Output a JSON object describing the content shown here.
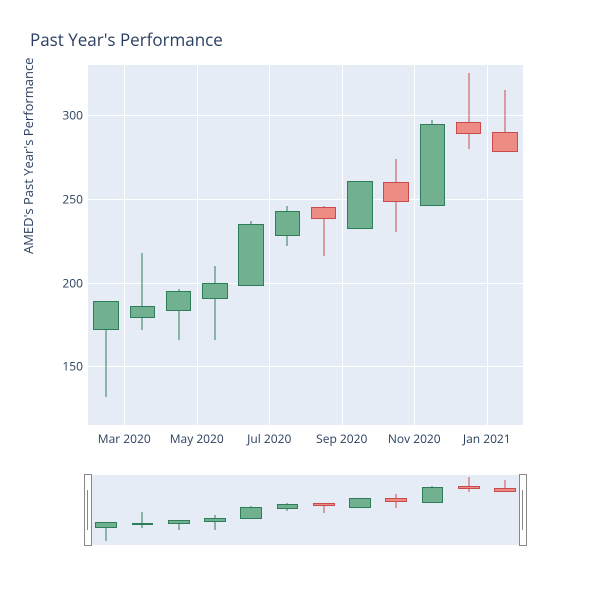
{
  "title": "Past Year's Performance",
  "ylabel": "AMED's Past Year's Performance",
  "background_color": "#ffffff",
  "plot_bg": "#e5ecf6",
  "grid_color": "#ffffff",
  "colors": {
    "up_fill": "#72b18f",
    "up_line": "#2e7d5a",
    "down_fill": "#ed8b85",
    "down_line": "#c94b4b"
  },
  "main": {
    "ylim": [
      115,
      330
    ],
    "yticks": [
      150,
      200,
      250,
      300
    ],
    "xticks": [
      {
        "label": "Mar 2020",
        "pos": 0.5
      },
      {
        "label": "May 2020",
        "pos": 2.5
      },
      {
        "label": "Jul 2020",
        "pos": 4.5
      },
      {
        "label": "Sep 2020",
        "pos": 6.5
      },
      {
        "label": "Nov 2020",
        "pos": 8.5
      },
      {
        "label": "Jan 2021",
        "pos": 10.5
      }
    ],
    "vgrid": [
      0.5,
      2.5,
      4.5,
      6.5,
      8.5,
      10.5
    ],
    "n": 12
  },
  "candles": [
    {
      "open": 172,
      "close": 189,
      "high": 189,
      "low": 132,
      "dir": "up"
    },
    {
      "open": 179,
      "close": 186,
      "high": 218,
      "low": 172,
      "dir": "up"
    },
    {
      "open": 183,
      "close": 195,
      "high": 196,
      "low": 166,
      "dir": "up"
    },
    {
      "open": 190,
      "close": 200,
      "high": 210,
      "low": 166,
      "dir": "up"
    },
    {
      "open": 198,
      "close": 235,
      "high": 237,
      "low": 198,
      "dir": "up"
    },
    {
      "open": 228,
      "close": 243,
      "high": 246,
      "low": 222,
      "dir": "up"
    },
    {
      "open": 245,
      "close": 238,
      "high": 246,
      "low": 216,
      "dir": "down"
    },
    {
      "open": 232,
      "close": 261,
      "high": 261,
      "low": 232,
      "dir": "up"
    },
    {
      "open": 260,
      "close": 248,
      "high": 274,
      "low": 230,
      "dir": "down"
    },
    {
      "open": 246,
      "close": 295,
      "high": 297,
      "low": 246,
      "dir": "up"
    },
    {
      "open": 296,
      "close": 289,
      "high": 325,
      "low": 280,
      "dir": "down"
    },
    {
      "open": 290,
      "close": 278,
      "high": 315,
      "low": 278,
      "dir": "down"
    }
  ],
  "range": {
    "ylim": [
      120,
      330
    ]
  }
}
